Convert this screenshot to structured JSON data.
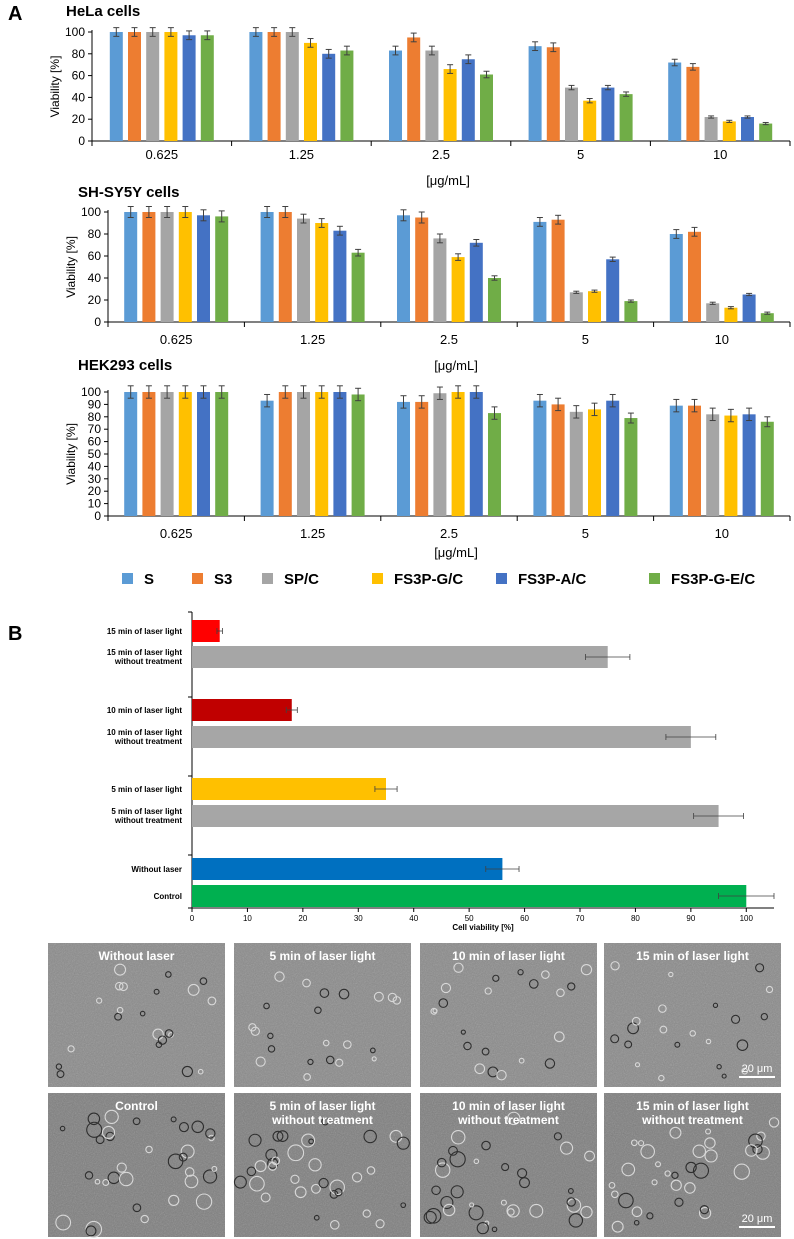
{
  "panel_labels": {
    "a": "A",
    "b": "B"
  },
  "colors": {
    "S": "#5b9bd5",
    "S3": "#ed7d31",
    "SP/C": "#a5a5a5",
    "FS3P-G/C": "#ffc000",
    "FS3P-A/C": "#4472c4",
    "FS3P-G-E/C": "#70ad47",
    "red": "#ff0000",
    "darkred": "#c00000",
    "yellow": "#ffc000",
    "gray": "#a6a6a6",
    "blue": "#0070c0",
    "green": "#00b050"
  },
  "legend": {
    "entries": [
      "S",
      "S3",
      "SP/C",
      "FS3P-G/C",
      "FS3P-A/C",
      "FS3P-G-E/C"
    ]
  },
  "chart_data": [
    {
      "type": "bar",
      "title": "HeLa cells",
      "xlabel": "[μg/mL]",
      "ylabel": "Viability [%]",
      "ylim": [
        0,
        100
      ],
      "yticks": [
        0,
        20,
        40,
        60,
        80,
        100
      ],
      "categories": [
        "0.625",
        "1.25",
        "2.5",
        "5",
        "10"
      ],
      "series": [
        {
          "name": "S",
          "values": [
            100,
            100,
            83,
            87,
            72
          ],
          "errors": [
            4,
            4,
            4,
            4,
            3
          ]
        },
        {
          "name": "S3",
          "values": [
            100,
            100,
            95,
            86,
            68
          ],
          "errors": [
            4,
            4,
            4,
            4,
            3
          ]
        },
        {
          "name": "SP/C",
          "values": [
            100,
            100,
            83,
            49,
            22
          ],
          "errors": [
            4,
            4,
            4,
            2,
            1
          ]
        },
        {
          "name": "FS3P-G/C",
          "values": [
            100,
            90,
            66,
            37,
            18
          ],
          "errors": [
            4,
            4,
            4,
            2,
            1
          ]
        },
        {
          "name": "FS3P-A/C",
          "values": [
            97,
            80,
            75,
            49,
            22
          ],
          "errors": [
            4,
            4,
            4,
            2,
            1
          ]
        },
        {
          "name": "FS3P-G-E/C",
          "values": [
            97,
            83,
            61,
            43,
            16
          ],
          "errors": [
            4,
            4,
            3,
            2,
            1
          ]
        }
      ]
    },
    {
      "type": "bar",
      "title": "SH-SY5Y cells",
      "xlabel": "[μg/mL]",
      "ylabel": "Viability [%]",
      "ylim": [
        0,
        100
      ],
      "yticks": [
        0,
        20,
        40,
        60,
        80,
        100
      ],
      "categories": [
        "0.625",
        "1.25",
        "2.5",
        "5",
        "10"
      ],
      "series": [
        {
          "name": "S",
          "values": [
            100,
            100,
            97,
            91,
            80
          ],
          "errors": [
            5,
            5,
            5,
            4,
            4
          ]
        },
        {
          "name": "S3",
          "values": [
            100,
            100,
            95,
            93,
            82
          ],
          "errors": [
            5,
            5,
            5,
            4,
            4
          ]
        },
        {
          "name": "SP/C",
          "values": [
            100,
            94,
            76,
            27,
            17
          ],
          "errors": [
            5,
            4,
            4,
            1,
            1
          ]
        },
        {
          "name": "FS3P-G/C",
          "values": [
            100,
            90,
            59,
            28,
            13
          ],
          "errors": [
            5,
            4,
            3,
            1,
            1
          ]
        },
        {
          "name": "FS3P-A/C",
          "values": [
            97,
            83,
            72,
            57,
            25
          ],
          "errors": [
            5,
            4,
            3,
            2,
            1
          ]
        },
        {
          "name": "FS3P-G-E/C",
          "values": [
            96,
            63,
            40,
            19,
            8
          ],
          "errors": [
            5,
            3,
            2,
            1,
            1
          ]
        }
      ]
    },
    {
      "type": "bar",
      "title": "HEK293 cells",
      "xlabel": "[μg/mL]",
      "ylabel": "Viability [%]",
      "ylim": [
        0,
        100
      ],
      "yticks": [
        0,
        10,
        20,
        30,
        40,
        50,
        60,
        70,
        80,
        90,
        100
      ],
      "categories": [
        "0.625",
        "1.25",
        "2.5",
        "5",
        "10"
      ],
      "series": [
        {
          "name": "S",
          "values": [
            100,
            93,
            92,
            93,
            89
          ],
          "errors": [
            5,
            5,
            5,
            5,
            5
          ]
        },
        {
          "name": "S3",
          "values": [
            100,
            100,
            92,
            90,
            89
          ],
          "errors": [
            5,
            5,
            5,
            5,
            5
          ]
        },
        {
          "name": "SP/C",
          "values": [
            100,
            100,
            99,
            84,
            82
          ],
          "errors": [
            5,
            5,
            5,
            5,
            5
          ]
        },
        {
          "name": "FS3P-G/C",
          "values": [
            100,
            100,
            100,
            86,
            81
          ],
          "errors": [
            5,
            5,
            5,
            5,
            5
          ]
        },
        {
          "name": "FS3P-A/C",
          "values": [
            100,
            100,
            100,
            93,
            82
          ],
          "errors": [
            5,
            5,
            5,
            5,
            5
          ]
        },
        {
          "name": "FS3P-G-E/C",
          "values": [
            100,
            98,
            83,
            79,
            76
          ],
          "errors": [
            5,
            5,
            5,
            4,
            4
          ]
        }
      ]
    },
    {
      "type": "bar",
      "orientation": "horizontal",
      "title": "",
      "xlabel": "Cell viability [%]",
      "ylabel": "",
      "xlim": [
        0,
        105
      ],
      "xticks": [
        0,
        10,
        20,
        30,
        40,
        50,
        60,
        70,
        80,
        90,
        100
      ],
      "bars": [
        {
          "label": "15 min of laser light",
          "value": 5,
          "error": 0.5,
          "color": "#ff0000"
        },
        {
          "label": "15 min of laser light\nwithout treatment",
          "value": 75,
          "error": 4,
          "color": "#a6a6a6"
        },
        {
          "label": "10 min of laser light",
          "value": 18,
          "error": 1,
          "color": "#c00000"
        },
        {
          "label": "10 min of laser light\nwithout treatment",
          "value": 90,
          "error": 4.5,
          "color": "#a6a6a6"
        },
        {
          "label": "5 min of laser light",
          "value": 35,
          "error": 2,
          "color": "#ffc000"
        },
        {
          "label": "5 min of laser light\nwithout treatment",
          "value": 95,
          "error": 4.5,
          "color": "#a6a6a6"
        },
        {
          "label": "Without laser",
          "value": 56,
          "error": 3,
          "color": "#0070c0"
        },
        {
          "label": "Control",
          "value": 100,
          "error": 5,
          "color": "#00b050"
        }
      ]
    }
  ],
  "micrographs": [
    {
      "label": "Without laser"
    },
    {
      "label": "5 min of laser light"
    },
    {
      "label": "10 min of laser light"
    },
    {
      "label": "15 min of laser light"
    },
    {
      "label": "Control"
    },
    {
      "label": "5 min of laser light\nwithout treatment"
    },
    {
      "label": "10 min of laser light\nwithout treatment"
    },
    {
      "label": "15 min of laser light\nwithout treatment"
    }
  ],
  "scale_bar": "20 μm"
}
